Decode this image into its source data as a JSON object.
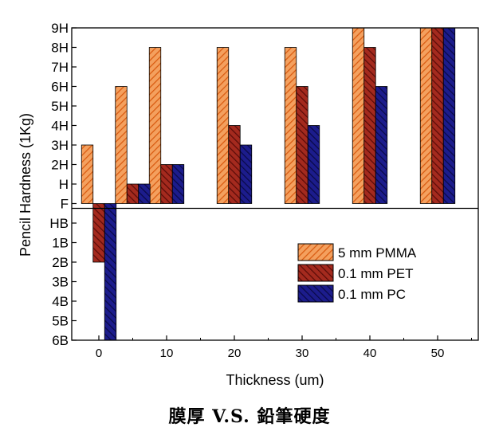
{
  "chart_data": {
    "type": "bar",
    "title": "",
    "xlabel": "Thickness (um)",
    "ylabel": "Pencil Hardness (1Kg)",
    "x_ticks": [
      "0",
      "10",
      "20",
      "30",
      "40",
      "50"
    ],
    "y_ticks": [
      "9H",
      "8H",
      "7H",
      "6H",
      "5H",
      "4H",
      "3H",
      "2H",
      "H",
      "F",
      "HB",
      "1B",
      "2B",
      "3B",
      "4B",
      "5B",
      "6B"
    ],
    "y_value_of_ticks": [
      9,
      8,
      7,
      6,
      5,
      4,
      3,
      2,
      1,
      0,
      -1,
      -2,
      -3,
      -4,
      -5,
      -6,
      -7
    ],
    "ylim": [
      -7,
      9
    ],
    "xlim": [
      -4,
      56
    ],
    "grid": false,
    "legend_position": "lower-right",
    "series": [
      {
        "name": "5 mm PMMA",
        "color": "#f07a2a",
        "hatch": "orange-diagonal",
        "x": [
          0,
          5,
          10,
          20,
          30,
          40,
          50
        ],
        "values": [
          3,
          6,
          8,
          8,
          8,
          9,
          9
        ],
        "labels": [
          "3H",
          "6H",
          "8H",
          "8H",
          "8H",
          "9H",
          "9H"
        ]
      },
      {
        "name": "0.1 mm PET",
        "color": "#8a1a12",
        "hatch": "red-diagonal",
        "x": [
          0,
          5,
          10,
          20,
          30,
          40,
          50
        ],
        "values": [
          -3,
          1,
          2,
          4,
          6,
          8,
          9
        ],
        "labels": [
          "2B",
          "H",
          "2H",
          "4H",
          "6H",
          "8H",
          "9H"
        ]
      },
      {
        "name": "0.1 mm PC",
        "color": "#14146e",
        "hatch": "navy-diagonal",
        "x": [
          0,
          5,
          10,
          20,
          30,
          40,
          50
        ],
        "values": [
          -7,
          1,
          2,
          3,
          4,
          6,
          9
        ],
        "labels": [
          "6B",
          "H",
          "2H",
          "3H",
          "4H",
          "6H",
          "9H"
        ]
      }
    ]
  },
  "caption": "膜厚 V.S. 鉛筆硬度"
}
